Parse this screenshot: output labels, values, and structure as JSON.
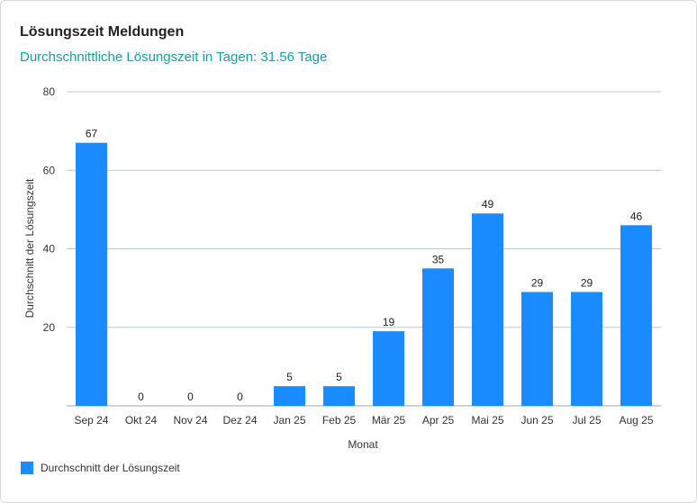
{
  "card": {
    "title": "Lösungszeit Meldungen",
    "subtitle": "Durchschnittliche Lösungszeit in Tagen: 31.56 Tage"
  },
  "chart_data": {
    "type": "bar",
    "title": "Lösungszeit Meldungen",
    "subtitle": "Durchschnittliche Lösungszeit in Tagen: 31.56 Tage",
    "xlabel": "Monat",
    "ylabel": "Durchschnitt der Lösungszeit",
    "ylim": [
      0,
      80
    ],
    "yticks": [
      20,
      40,
      60,
      80
    ],
    "grid": true,
    "legend_position": "bottom-left",
    "bar_color": "#1a8cff",
    "categories": [
      "Sep 24",
      "Okt 24",
      "Nov 24",
      "Dez 24",
      "Jan 25",
      "Feb 25",
      "Mär 25",
      "Apr 25",
      "Mai 25",
      "Jun 25",
      "Jul 25",
      "Aug 25"
    ],
    "series": [
      {
        "name": "Durchschnitt der Lösungszeit",
        "values": [
          67,
          0,
          0,
          0,
          5,
          5,
          19,
          35,
          49,
          29,
          29,
          46
        ]
      }
    ]
  }
}
